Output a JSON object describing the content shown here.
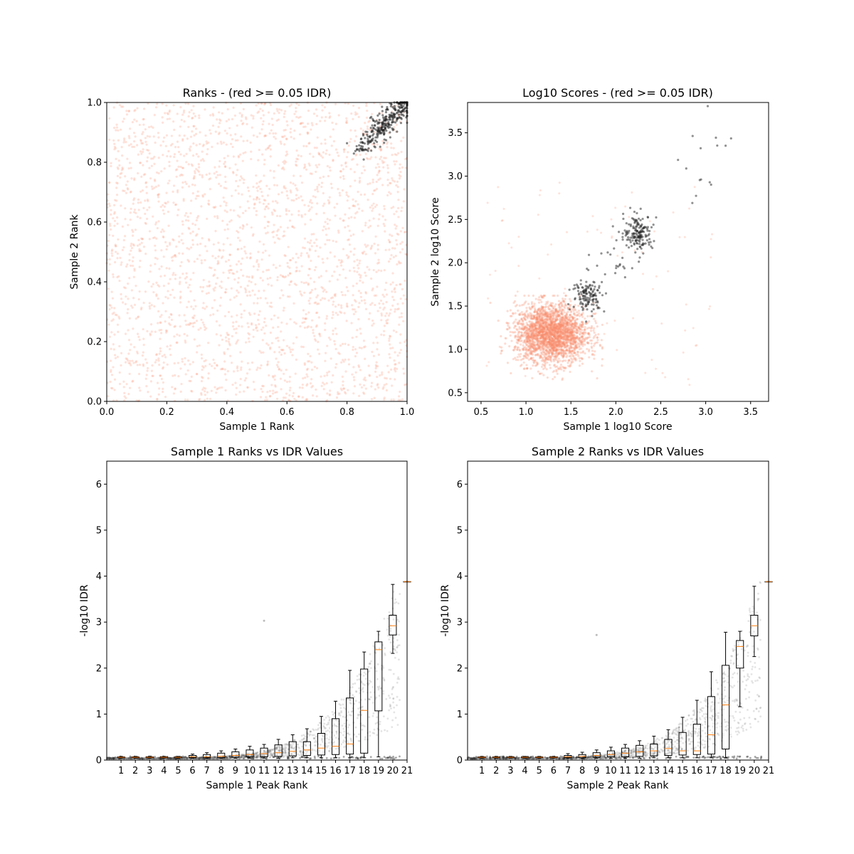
{
  "figure": {
    "colors": {
      "red": "#fa8a6b",
      "black": "#222222",
      "median": "#ff7f0e",
      "box": "#000000"
    }
  },
  "chart_data": [
    {
      "type": "scatter",
      "title": "Ranks - (red >= 0.05 IDR)",
      "xlabel": "Sample 1 Rank",
      "ylabel": "Sample 2 Rank",
      "xlim": [
        0.0,
        1.0
      ],
      "ylim": [
        0.0,
        1.0
      ],
      "xticks": [
        0.0,
        0.2,
        0.4,
        0.6,
        0.8,
        1.0
      ],
      "yticks": [
        0.0,
        0.2,
        0.4,
        0.6,
        0.8,
        1.0
      ],
      "tick_labels_x": [
        "0.0",
        "0.2",
        "0.4",
        "0.6",
        "0.8",
        "1.0"
      ],
      "tick_labels_y": [
        "0.0",
        "0.2",
        "0.4",
        "0.6",
        "0.8",
        "1.0"
      ],
      "series": [
        {
          "color": "#fa8a6b",
          "description": "IDR >= 0.05 peaks uniformly distributed",
          "x_range": [
            0.0,
            1.0
          ],
          "y_range": [
            0.0,
            1.0
          ],
          "approx_count": 2600
        },
        {
          "color": "#222222",
          "description": "IDR < 0.05 peaks concentrated near top-right",
          "x_range": [
            0.8,
            1.0
          ],
          "y_range": [
            0.8,
            1.0
          ],
          "approx_count": 320
        }
      ]
    },
    {
      "type": "scatter",
      "title": "Log10 Scores - (red >= 0.05 IDR)",
      "xlabel": "Sample 1 log10 Score",
      "ylabel": "Sample 2 log10 Score",
      "xlim": [
        0.35,
        3.7
      ],
      "ylim": [
        0.4,
        3.85
      ],
      "xticks": [
        0.5,
        1.0,
        1.5,
        2.0,
        2.5,
        3.0,
        3.5
      ],
      "yticks": [
        0.5,
        1.0,
        1.5,
        2.0,
        2.5,
        3.0,
        3.5
      ],
      "tick_labels_x": [
        "0.5",
        "1.0",
        "1.5",
        "2.0",
        "2.5",
        "3.0",
        "3.5"
      ],
      "tick_labels_y": [
        "0.5",
        "1.0",
        "1.5",
        "2.0",
        "2.5",
        "3.0",
        "3.5"
      ],
      "series": [
        {
          "color": "#fa8a6b",
          "description": "Dense cloud centered near (1.3, 1.2)",
          "center": [
            1.3,
            1.2
          ],
          "approx_count": 2500
        },
        {
          "color": "#222222",
          "description": "Clusters along diagonal",
          "clusters": [
            [
              1.7,
              1.6
            ],
            [
              2.25,
              2.35
            ],
            [
              3.1,
              3.2
            ]
          ],
          "approx_count": 330
        }
      ]
    },
    {
      "type": "box",
      "title": "Sample 1 Ranks vs IDR Values",
      "xlabel": "Sample 1 Peak Rank",
      "ylabel": "-log10 IDR",
      "xlim": [
        0,
        21
      ],
      "ylim": [
        0,
        6.5
      ],
      "categories": [
        "1",
        "2",
        "3",
        "4",
        "5",
        "6",
        "7",
        "8",
        "9",
        "10",
        "11",
        "12",
        "13",
        "14",
        "15",
        "16",
        "17",
        "18",
        "19",
        "20",
        "21"
      ],
      "yticks": [
        0,
        1,
        2,
        3,
        4,
        5,
        6
      ],
      "tick_labels_y": [
        "0",
        "1",
        "2",
        "3",
        "4",
        "5",
        "6"
      ],
      "boxes": [
        {
          "q1": 0.05,
          "median": 0.06,
          "q3": 0.07,
          "whislo": 0.04,
          "whishi": 0.08
        },
        {
          "q1": 0.05,
          "median": 0.06,
          "q3": 0.07,
          "whislo": 0.04,
          "whishi": 0.08
        },
        {
          "q1": 0.05,
          "median": 0.06,
          "q3": 0.07,
          "whislo": 0.04,
          "whishi": 0.08
        },
        {
          "q1": 0.05,
          "median": 0.06,
          "q3": 0.07,
          "whislo": 0.04,
          "whishi": 0.08
        },
        {
          "q1": 0.05,
          "median": 0.06,
          "q3": 0.07,
          "whislo": 0.04,
          "whishi": 0.08
        },
        {
          "q1": 0.05,
          "median": 0.07,
          "q3": 0.1,
          "whislo": 0.04,
          "whishi": 0.13
        },
        {
          "q1": 0.05,
          "median": 0.07,
          "q3": 0.12,
          "whislo": 0.04,
          "whishi": 0.16
        },
        {
          "q1": 0.05,
          "median": 0.08,
          "q3": 0.15,
          "whislo": 0.04,
          "whishi": 0.2
        },
        {
          "q1": 0.06,
          "median": 0.1,
          "q3": 0.18,
          "whislo": 0.04,
          "whishi": 0.24
        },
        {
          "q1": 0.07,
          "median": 0.12,
          "q3": 0.22,
          "whislo": 0.04,
          "whishi": 0.3
        },
        {
          "q1": 0.07,
          "median": 0.14,
          "q3": 0.26,
          "whislo": 0.04,
          "whishi": 0.34
        },
        {
          "q1": 0.08,
          "median": 0.16,
          "q3": 0.33,
          "whislo": 0.04,
          "whishi": 0.45
        },
        {
          "q1": 0.09,
          "median": 0.19,
          "q3": 0.4,
          "whislo": 0.05,
          "whishi": 0.55
        },
        {
          "q1": 0.1,
          "median": 0.22,
          "q3": 0.4,
          "whislo": 0.05,
          "whishi": 0.68
        },
        {
          "q1": 0.11,
          "median": 0.26,
          "q3": 0.58,
          "whislo": 0.05,
          "whishi": 0.95
        },
        {
          "q1": 0.12,
          "median": 0.3,
          "q3": 0.9,
          "whislo": 0.05,
          "whishi": 1.28
        },
        {
          "q1": 0.13,
          "median": 0.35,
          "q3": 1.35,
          "whislo": 0.05,
          "whishi": 1.95
        },
        {
          "q1": 0.15,
          "median": 1.08,
          "q3": 1.98,
          "whislo": 0.05,
          "whishi": 2.35
        },
        {
          "q1": 1.07,
          "median": 2.4,
          "q3": 2.57,
          "whislo": 0.07,
          "whishi": 2.8
        },
        {
          "q1": 2.72,
          "median": 2.92,
          "q3": 3.15,
          "whislo": 2.32,
          "whishi": 3.82
        },
        {
          "q1": 3.88,
          "median": 3.88,
          "q3": 3.88,
          "whislo": 3.88,
          "whishi": 3.88
        }
      ],
      "outliers": [
        {
          "category": 11,
          "value": 3.03
        }
      ]
    },
    {
      "type": "box",
      "title": "Sample 2 Ranks vs IDR Values",
      "xlabel": "Sample 2 Peak Rank",
      "ylabel": "-log10 IDR",
      "xlim": [
        0,
        21
      ],
      "ylim": [
        0,
        6.5
      ],
      "categories": [
        "1",
        "2",
        "3",
        "4",
        "5",
        "6",
        "7",
        "8",
        "9",
        "10",
        "11",
        "12",
        "13",
        "14",
        "15",
        "16",
        "17",
        "18",
        "19",
        "20",
        "21"
      ],
      "yticks": [
        0,
        1,
        2,
        3,
        4,
        5,
        6
      ],
      "tick_labels_y": [
        "0",
        "1",
        "2",
        "3",
        "4",
        "5",
        "6"
      ],
      "boxes": [
        {
          "q1": 0.05,
          "median": 0.06,
          "q3": 0.07,
          "whislo": 0.04,
          "whishi": 0.08
        },
        {
          "q1": 0.05,
          "median": 0.06,
          "q3": 0.07,
          "whislo": 0.04,
          "whishi": 0.08
        },
        {
          "q1": 0.05,
          "median": 0.06,
          "q3": 0.07,
          "whislo": 0.04,
          "whishi": 0.08
        },
        {
          "q1": 0.05,
          "median": 0.06,
          "q3": 0.07,
          "whislo": 0.04,
          "whishi": 0.08
        },
        {
          "q1": 0.05,
          "median": 0.06,
          "q3": 0.07,
          "whislo": 0.04,
          "whishi": 0.08
        },
        {
          "q1": 0.05,
          "median": 0.06,
          "q3": 0.07,
          "whislo": 0.04,
          "whishi": 0.08
        },
        {
          "q1": 0.05,
          "median": 0.07,
          "q3": 0.1,
          "whislo": 0.04,
          "whishi": 0.14
        },
        {
          "q1": 0.05,
          "median": 0.08,
          "q3": 0.12,
          "whislo": 0.04,
          "whishi": 0.17
        },
        {
          "q1": 0.06,
          "median": 0.1,
          "q3": 0.16,
          "whislo": 0.04,
          "whishi": 0.22
        },
        {
          "q1": 0.07,
          "median": 0.12,
          "q3": 0.2,
          "whislo": 0.04,
          "whishi": 0.28
        },
        {
          "q1": 0.07,
          "median": 0.15,
          "q3": 0.26,
          "whislo": 0.04,
          "whishi": 0.34
        },
        {
          "q1": 0.08,
          "median": 0.18,
          "q3": 0.32,
          "whislo": 0.04,
          "whishi": 0.42
        },
        {
          "q1": 0.09,
          "median": 0.2,
          "q3": 0.35,
          "whislo": 0.05,
          "whishi": 0.52
        },
        {
          "q1": 0.1,
          "median": 0.25,
          "q3": 0.45,
          "whislo": 0.05,
          "whishi": 0.66
        },
        {
          "q1": 0.11,
          "median": 0.2,
          "q3": 0.6,
          "whislo": 0.05,
          "whishi": 0.93
        },
        {
          "q1": 0.12,
          "median": 0.2,
          "q3": 0.78,
          "whislo": 0.05,
          "whishi": 1.3
        },
        {
          "q1": 0.13,
          "median": 0.55,
          "q3": 1.38,
          "whislo": 0.05,
          "whishi": 1.92
        },
        {
          "q1": 0.24,
          "median": 1.2,
          "q3": 2.06,
          "whislo": 0.05,
          "whishi": 2.78
        },
        {
          "q1": 2.0,
          "median": 2.47,
          "q3": 2.6,
          "whislo": 1.16,
          "whishi": 2.8
        },
        {
          "q1": 2.7,
          "median": 2.92,
          "q3": 3.15,
          "whislo": 2.25,
          "whishi": 3.78
        },
        {
          "q1": 3.88,
          "median": 3.88,
          "q3": 3.88,
          "whislo": 3.88,
          "whishi": 3.88
        }
      ],
      "outliers": [
        {
          "category": 9,
          "value": 2.72
        }
      ]
    }
  ]
}
